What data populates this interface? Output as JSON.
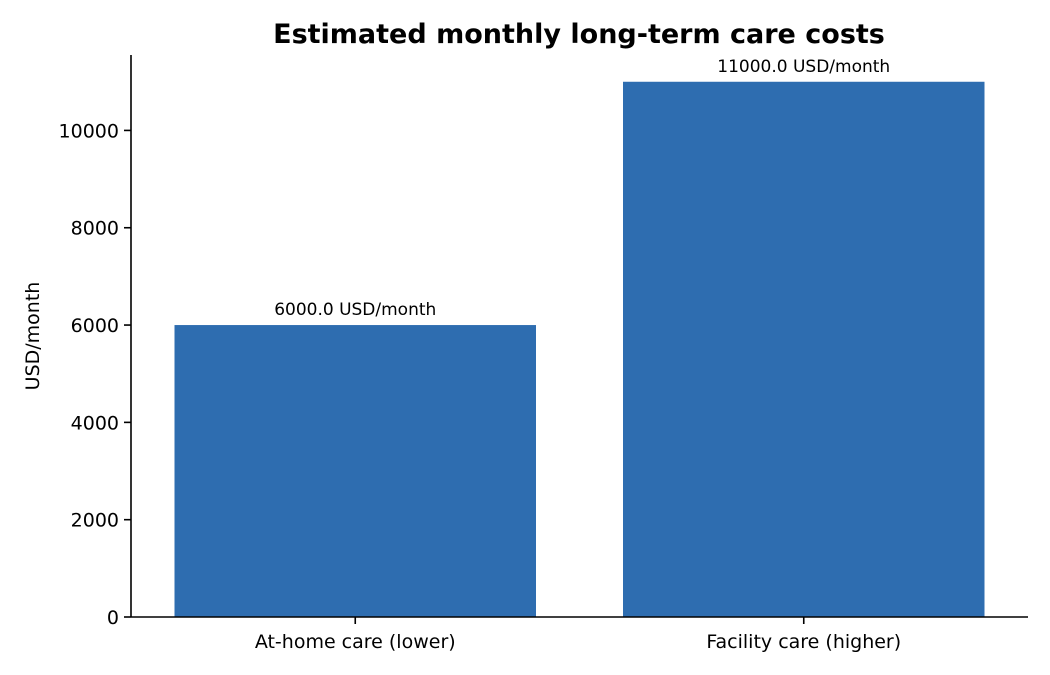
{
  "chart_data": {
    "type": "bar",
    "title": "Estimated monthly long-term care costs",
    "xlabel": "",
    "ylabel": "USD/month",
    "categories": [
      "At-home care (lower)",
      "Facility care (higher)"
    ],
    "values": [
      6000,
      11000
    ],
    "data_labels": [
      "6000.0 USD/month",
      "11000.0 USD/month"
    ],
    "y_ticks": [
      0,
      2000,
      4000,
      6000,
      8000,
      10000
    ],
    "ylim": [
      0,
      11550
    ],
    "grid": false,
    "bar_color": "#2e6db0"
  }
}
